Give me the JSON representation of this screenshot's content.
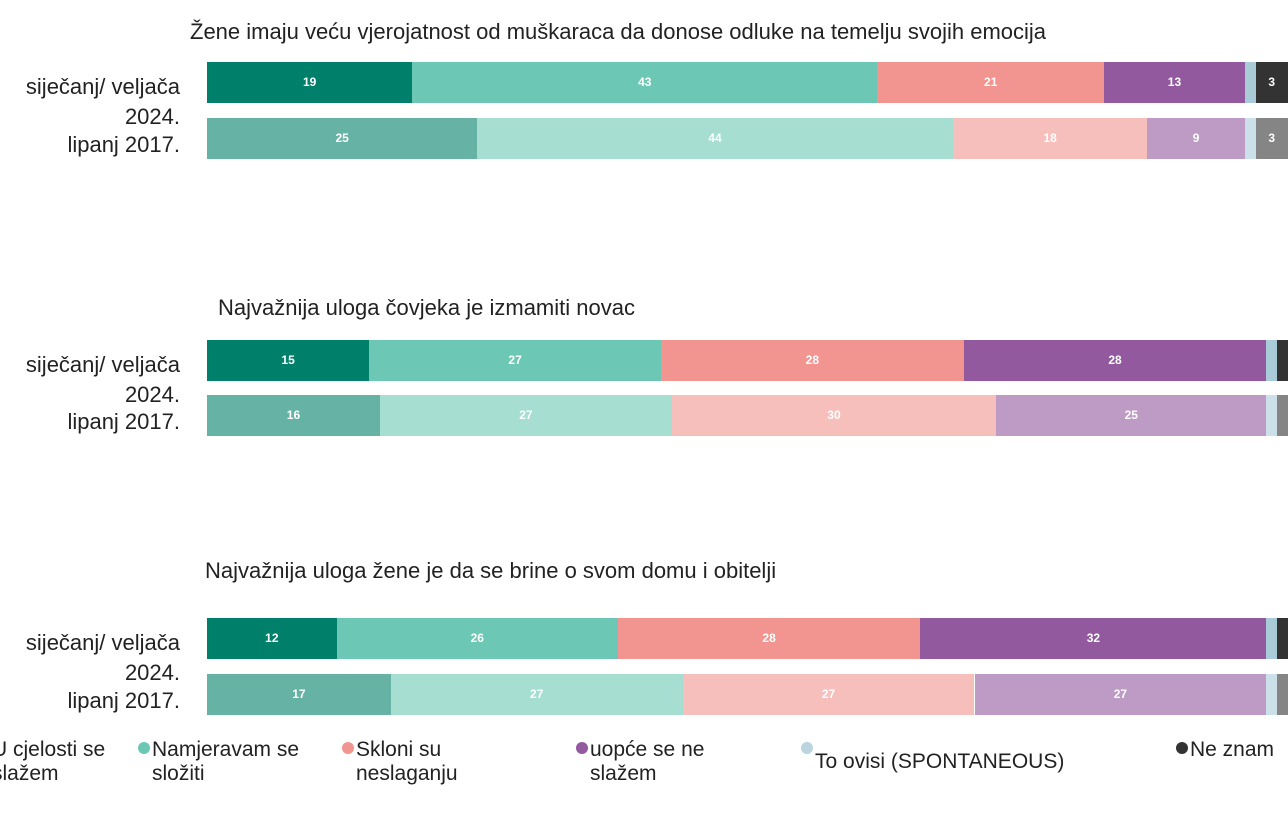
{
  "chart_data": [
    {
      "type": "bar",
      "orientation": "horizontal",
      "stacked": true,
      "title": "Žene imaju veću vjerojatnost od muškaraca da donose odluke na temelju svojih emocija",
      "categories": [
        "siječanj/ veljača 2024.",
        "lipanj 2017."
      ],
      "xlim": [
        0,
        100
      ],
      "series": [
        {
          "values": [
            19,
            25
          ]
        },
        {
          "values": [
            43,
            44
          ]
        },
        {
          "values": [
            21,
            18
          ]
        },
        {
          "values": [
            13,
            9
          ]
        },
        {
          "values": [
            1,
            1
          ]
        },
        {
          "values": [
            3,
            3
          ]
        }
      ]
    },
    {
      "type": "bar",
      "orientation": "horizontal",
      "stacked": true,
      "title": "Najvažnija uloga čovjeka je izmamiti novac",
      "categories": [
        "siječanj/ veljača 2024.",
        "lipanj 2017."
      ],
      "xlim": [
        0,
        100
      ],
      "series": [
        {
          "values": [
            15,
            16
          ]
        },
        {
          "values": [
            27,
            27
          ]
        },
        {
          "values": [
            28,
            30
          ]
        },
        {
          "values": [
            28,
            25
          ]
        },
        {
          "values": [
            1,
            1
          ]
        },
        {
          "values": [
            1,
            1
          ]
        }
      ]
    },
    {
      "type": "bar",
      "orientation": "horizontal",
      "stacked": true,
      "title": "Najvažnija uloga žene je da se brine o svom domu i obitelji",
      "categories": [
        "siječanj/ veljača 2024.",
        "lipanj 2017."
      ],
      "xlim": [
        0,
        100
      ],
      "series": [
        {
          "values": [
            12,
            17
          ]
        },
        {
          "values": [
            26,
            27
          ]
        },
        {
          "values": [
            28,
            27
          ]
        },
        {
          "values": [
            32,
            27
          ]
        },
        {
          "values": [
            1,
            1
          ]
        },
        {
          "values": [
            1,
            1
          ]
        }
      ]
    }
  ],
  "legend": {
    "series": [
      {
        "name": "U cjelosti se slažem",
        "color": "#00806a"
      },
      {
        "name": "Namjeravam se složiti",
        "color": "#6cc8b4"
      },
      {
        "name": "Skloni su neslaganju",
        "color": "#f2948f"
      },
      {
        "name": "uopće se ne slažem",
        "color": "#93599e"
      },
      {
        "name": "To ovisi (SPONTANEOUS)",
        "color": "#a9cbd8"
      },
      {
        "name": "Ne znam",
        "color": "#333333"
      }
    ]
  }
}
